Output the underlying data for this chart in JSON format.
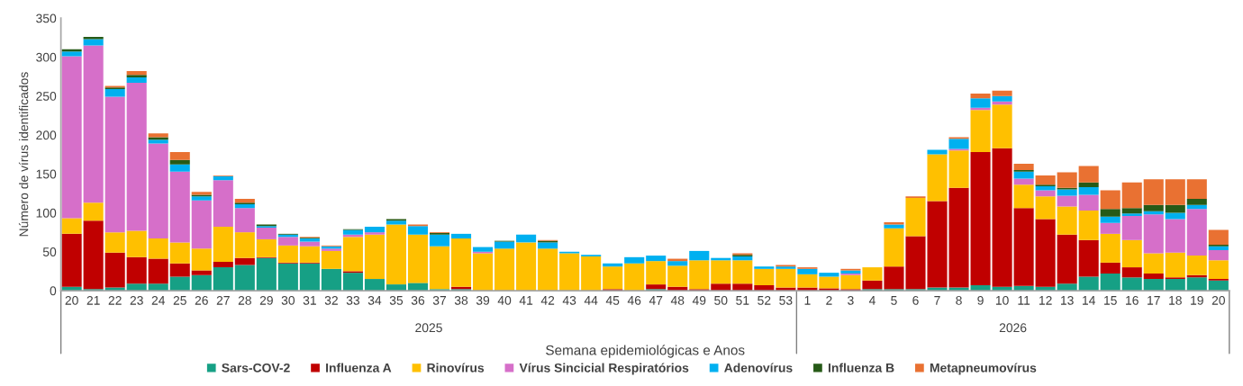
{
  "chart_data": {
    "type": "bar",
    "stacked": true,
    "xlabel": "Semana epidemiológicas e Anos",
    "ylabel": "Número de vírus identificados",
    "categories": [
      "20",
      "21",
      "22",
      "23",
      "24",
      "25",
      "26",
      "27",
      "28",
      "29",
      "30",
      "31",
      "32",
      "33",
      "34",
      "35",
      "36",
      "37",
      "38",
      "39",
      "40",
      "41",
      "42",
      "43",
      "44",
      "45",
      "46",
      "47",
      "48",
      "49",
      "50",
      "51",
      "52",
      "53",
      "1",
      "2",
      "3",
      "4",
      "5",
      "6",
      "7",
      "8",
      "9",
      "10",
      "11",
      "12",
      "13",
      "14",
      "15",
      "16",
      "17",
      "18",
      "19",
      "20"
    ],
    "annotations": [
      "2025",
      "2026"
    ],
    "ylim": [
      0,
      350
    ],
    "yticks": [
      0,
      50,
      100,
      150,
      200,
      250,
      300,
      350
    ],
    "grid": false,
    "legend": "bottom",
    "series": [
      {
        "name": "Sars-COV-2",
        "color": "#16a085",
        "values": [
          5,
          2,
          4,
          9,
          9,
          18,
          20,
          30,
          33,
          42,
          35,
          35,
          28,
          23,
          15,
          8,
          10,
          2,
          2,
          0,
          0,
          0,
          0,
          0,
          0,
          0,
          0,
          2,
          0,
          0,
          0,
          0,
          0,
          0,
          0,
          0,
          0,
          2,
          2,
          2,
          4,
          4,
          7,
          5,
          6,
          5,
          9,
          18,
          22,
          17,
          15,
          15,
          17,
          13
        ]
      },
      {
        "name": "Influenza A",
        "color": "#c00000",
        "values": [
          68,
          88,
          45,
          34,
          32,
          17,
          6,
          7,
          9,
          1,
          1,
          1,
          0,
          2,
          0,
          0,
          0,
          0,
          3,
          0,
          0,
          0,
          0,
          0,
          0,
          2,
          0,
          6,
          5,
          2,
          9,
          9,
          7,
          4,
          4,
          3,
          2,
          11,
          29,
          68,
          111,
          128,
          171,
          178,
          100,
          87,
          63,
          47,
          14,
          13,
          7,
          2,
          3,
          2
        ]
      },
      {
        "name": "Rinovírus",
        "color": "#ffc000",
        "values": [
          20,
          23,
          26,
          34,
          26,
          27,
          28,
          45,
          33,
          23,
          22,
          21,
          23,
          44,
          57,
          77,
          62,
          55,
          62,
          48,
          54,
          62,
          54,
          48,
          44,
          29,
          35,
          30,
          27,
          37,
          30,
          30,
          21,
          24,
          17,
          15,
          18,
          17,
          49,
          49,
          60,
          48,
          54,
          56,
          30,
          29,
          36,
          38,
          37,
          35,
          26,
          32,
          25,
          24
        ]
      },
      {
        "name": "Vírus Sincicial Respiratórios",
        "color": "#d66fc9",
        "values": [
          208,
          202,
          174,
          190,
          122,
          91,
          62,
          60,
          31,
          15,
          11,
          6,
          3,
          3,
          3,
          0,
          0,
          0,
          0,
          2,
          0,
          0,
          null,
          0,
          0,
          0,
          0,
          0,
          0,
          0,
          null,
          0,
          0,
          0,
          0,
          0,
          2,
          0,
          0,
          0,
          0,
          2,
          3,
          4,
          8,
          8,
          14,
          20,
          14,
          31,
          50,
          43,
          60,
          13
        ]
      },
      {
        "name": "Adenovírus",
        "color": "#00b0f0",
        "values": [
          6,
          8,
          10,
          7,
          5,
          9,
          5,
          5,
          5,
          2,
          3,
          4,
          3,
          6,
          7,
          5,
          11,
          15,
          6,
          6,
          9,
          10,
          8,
          2,
          2,
          4,
          8,
          7,
          6,
          12,
          3,
          5,
          3,
          3,
          7,
          5,
          4,
          0,
          5,
          0,
          6,
          13,
          12,
          7,
          9,
          5,
          8,
          10,
          8,
          3,
          4,
          8,
          5,
          5
        ]
      },
      {
        "name": "Influenza B",
        "color": "#265a17",
        "values": [
          3,
          3,
          2,
          3,
          3,
          6,
          2,
          0,
          2,
          2,
          1,
          1,
          0,
          1,
          0,
          2,
          0,
          2,
          0,
          0,
          1,
          0,
          2,
          0,
          0,
          0,
          0,
          0,
          0,
          0,
          0,
          2,
          0,
          0,
          0,
          0,
          0,
          0,
          0,
          0,
          0,
          0,
          0,
          0,
          2,
          2,
          2,
          6,
          10,
          7,
          8,
          10,
          8,
          2
        ]
      },
      {
        "name": "Metapneumovírus",
        "color": "#e97132",
        "values": [
          0,
          0,
          2,
          5,
          5,
          10,
          4,
          1,
          5,
          0,
          0,
          1,
          1,
          0,
          0,
          0,
          2,
          1,
          0,
          0,
          0,
          0,
          1,
          0,
          0,
          0,
          0,
          0,
          3,
          0,
          0,
          2,
          0,
          2,
          2,
          0,
          2,
          0,
          3,
          2,
          0,
          2,
          6,
          7,
          8,
          12,
          20,
          21,
          24,
          33,
          33,
          33,
          25,
          19
        ]
      }
    ]
  }
}
